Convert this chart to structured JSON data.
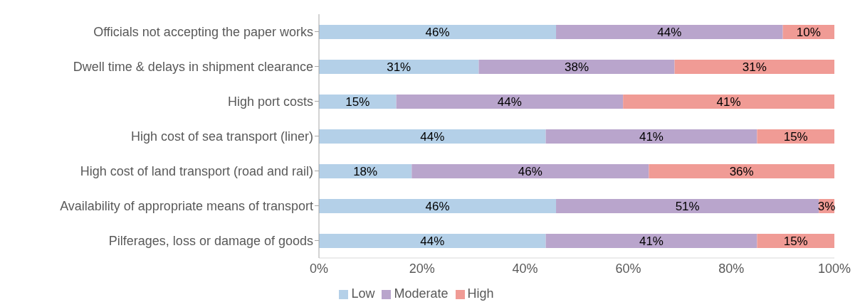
{
  "chart_data": {
    "type": "bar",
    "orientation": "horizontal",
    "stacked": true,
    "categories": [
      "Officials not accepting the paper works",
      "Dwell time & delays in shipment clearance",
      "High port costs",
      "High cost of sea transport (liner)",
      "High cost of land transport (road and rail)",
      "Availability of appropriate means of transport",
      "Pilferages, loss or damage of goods"
    ],
    "series": [
      {
        "name": "Low",
        "color": "#b4d0e8",
        "values": [
          46,
          31,
          15,
          44,
          18,
          46,
          44
        ],
        "value_labels": [
          "46%",
          "31%",
          "15%",
          "44%",
          "18%",
          "46%",
          "44%"
        ]
      },
      {
        "name": "Moderate",
        "color": "#b9a5cc",
        "values": [
          44,
          38,
          44,
          41,
          46,
          51,
          41
        ],
        "value_labels": [
          "44%",
          "38%",
          "44%",
          "41%",
          "46%",
          "51%",
          "41%"
        ]
      },
      {
        "name": "High",
        "color": "#f09b95",
        "values": [
          10,
          31,
          41,
          15,
          36,
          3,
          15
        ],
        "value_labels": [
          "10%",
          "31%",
          "41%",
          "15%",
          "36%",
          "3%",
          "15%"
        ]
      }
    ],
    "xlim": [
      0,
      100
    ],
    "xticks": [
      {
        "value": 0,
        "label": "0%"
      },
      {
        "value": 20,
        "label": "20%"
      },
      {
        "value": 40,
        "label": "40%"
      },
      {
        "value": 60,
        "label": "60%"
      },
      {
        "value": 80,
        "label": "80%"
      },
      {
        "value": 100,
        "label": "100%"
      }
    ],
    "grid": false,
    "legend": "bottom"
  }
}
